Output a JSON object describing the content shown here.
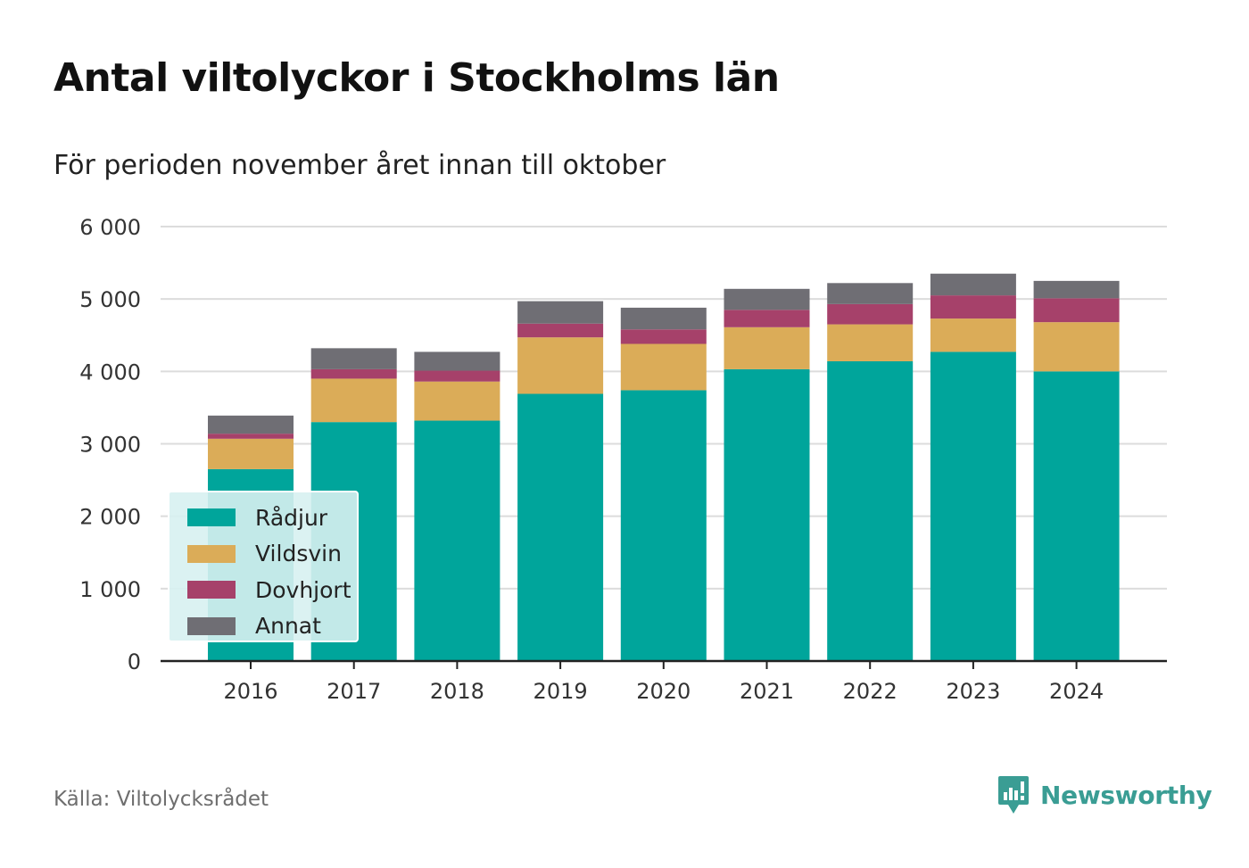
{
  "header": {
    "title": "Antal viltolyckor i Stockholms län",
    "subtitle": "För perioden november året innan till oktober"
  },
  "footer": {
    "source": "Källa: Viltolycksrådet",
    "brand": "Newsworthy",
    "brand_icon": "bar-chart-speech-bubble-icon",
    "brand_color": "#3a9d94"
  },
  "chart_data": {
    "type": "bar",
    "stacked": true,
    "categories": [
      "2016",
      "2017",
      "2018",
      "2019",
      "2020",
      "2021",
      "2022",
      "2023",
      "2024"
    ],
    "series": [
      {
        "name": "Rådjur",
        "color": "#00a59b",
        "values": [
          2650,
          3300,
          3320,
          3690,
          3740,
          4030,
          4140,
          4270,
          4000
        ]
      },
      {
        "name": "Vildsvin",
        "color": "#dbac58",
        "values": [
          420,
          600,
          540,
          780,
          640,
          580,
          510,
          460,
          680
        ]
      },
      {
        "name": "Dovhjort",
        "color": "#a6416a",
        "values": [
          70,
          130,
          150,
          190,
          200,
          240,
          280,
          320,
          330
        ]
      },
      {
        "name": "Annat",
        "color": "#6f6e74",
        "values": [
          250,
          290,
          260,
          310,
          300,
          290,
          290,
          300,
          240
        ]
      }
    ],
    "yticks": [
      "0",
      "1 000",
      "2 000",
      "3 000",
      "4 000",
      "5 000",
      "6 000"
    ],
    "ylim": [
      0,
      6000
    ],
    "grid": true,
    "legend_position": "bottom-left"
  }
}
